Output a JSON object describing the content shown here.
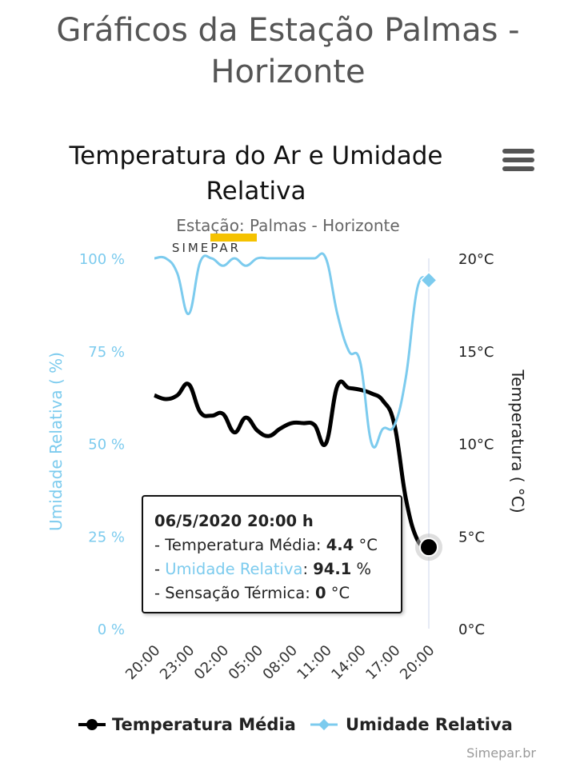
{
  "page": {
    "title": "Gráficos da Estação Palmas - Horizonte",
    "credits": "Simepar.br",
    "watermark": "SIMEPAR"
  },
  "chart_data": {
    "type": "line",
    "title": "Temperatura do Ar e Umidade Relativa",
    "subtitle": "Estação: Palmas - Horizonte",
    "x_tick_labels": [
      "20:00",
      "23:00",
      "02:00",
      "05:00",
      "08:00",
      "11:00",
      "14:00",
      "17:00",
      "20:00"
    ],
    "x_unit": "hours since 05/5/2020 20:00",
    "y_left": {
      "label": "Umidade Relativa ( %)",
      "range": [
        0,
        100
      ],
      "tick_labels": [
        "0 %",
        "25 %",
        "50 %",
        "75 %",
        "100 %"
      ],
      "color": "#7ccbee"
    },
    "y_right": {
      "label": "Temperatura ( °C)",
      "range": [
        0,
        20
      ],
      "tick_labels": [
        "0°C",
        "5°C",
        "10°C",
        "15°C",
        "20°C"
      ],
      "color": "#222222"
    },
    "series": [
      {
        "name": "Temperatura Média",
        "axis": "right",
        "color": "#000000",
        "points": [
          [
            0,
            12.6
          ],
          [
            1,
            12.4
          ],
          [
            2,
            12.6
          ],
          [
            3,
            13.2
          ],
          [
            4,
            11.7
          ],
          [
            5,
            11.5
          ],
          [
            6,
            11.6
          ],
          [
            7,
            10.6
          ],
          [
            8,
            11.4
          ],
          [
            9,
            10.7
          ],
          [
            10,
            10.4
          ],
          [
            11,
            10.8
          ],
          [
            12,
            11.1
          ],
          [
            13,
            11.1
          ],
          [
            14,
            11.0
          ],
          [
            15,
            10.0
          ],
          [
            16,
            13.1
          ],
          [
            17,
            13.0
          ],
          [
            18,
            12.9
          ],
          [
            19,
            12.7
          ],
          [
            20,
            12.3
          ],
          [
            21,
            11.0
          ],
          [
            22,
            7.0
          ],
          [
            23,
            4.8
          ],
          [
            24,
            4.4
          ]
        ]
      },
      {
        "name": "Umidade Relativa",
        "axis": "left",
        "color": "#7ccbee",
        "points": [
          [
            0,
            100
          ],
          [
            1,
            100
          ],
          [
            2,
            96
          ],
          [
            3,
            85
          ],
          [
            4,
            99
          ],
          [
            5,
            100
          ],
          [
            6,
            98
          ],
          [
            7,
            100
          ],
          [
            8,
            98
          ],
          [
            9,
            100
          ],
          [
            10,
            100
          ],
          [
            11,
            100
          ],
          [
            12,
            100
          ],
          [
            13,
            100
          ],
          [
            14,
            100
          ],
          [
            15,
            100
          ],
          [
            16,
            85
          ],
          [
            17,
            75
          ],
          [
            18,
            72
          ],
          [
            19,
            50
          ],
          [
            20,
            54
          ],
          [
            21,
            55
          ],
          [
            22,
            68
          ],
          [
            23,
            92
          ],
          [
            24,
            94.1
          ]
        ]
      }
    ],
    "tooltip": {
      "date": "06/5/2020 20:00 h",
      "temp_label": "- Temperatura Média:",
      "temp_value": "4.4",
      "temp_unit": "°C",
      "hum_prefix": "- ",
      "hum_label": "Umidade Relativa",
      "hum_sep": ":",
      "hum_value": "94.1",
      "hum_unit": "%",
      "sens_label": "- Sensação Térmica:",
      "sens_value": "0",
      "sens_unit": "°C"
    }
  }
}
